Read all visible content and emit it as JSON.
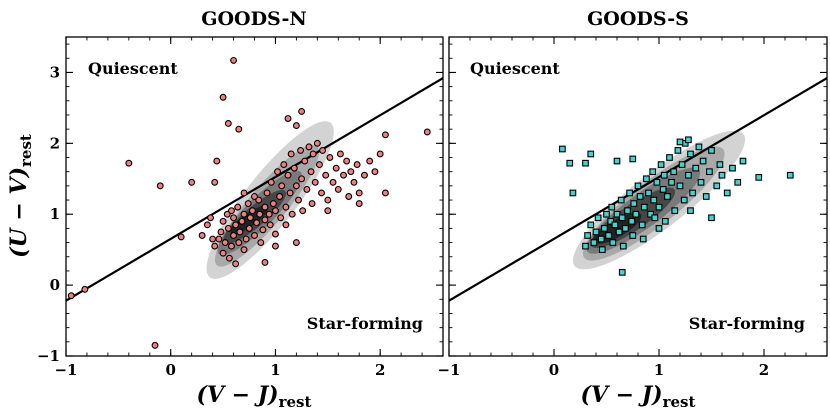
{
  "chart_data": [
    {
      "type": "scatter",
      "title": "GOODS-N",
      "xlabel": "(V − J)",
      "xlabel_sub": "rest",
      "ylabel": "(U − V)",
      "ylabel_sub": "rest",
      "xlim": [
        -1.0,
        2.6
      ],
      "ylim": [
        -1.0,
        3.5
      ],
      "xticks": [
        "−1",
        "0",
        "1",
        "2"
      ],
      "yticks": [
        "−1",
        "0",
        "1",
        "2",
        "3"
      ],
      "xtick_values": [
        -1,
        0,
        1,
        2
      ],
      "ytick_values": [
        -1,
        0,
        1,
        2,
        3
      ],
      "region_labels": {
        "quiescent": "Quiescent",
        "star_forming": "Star-forming"
      },
      "separation_line": {
        "x": [
          -1.0,
          2.6
        ],
        "y": [
          -0.22,
          2.92
        ]
      },
      "marker": {
        "shape": "circle",
        "fill": "#f08080",
        "edge": "#000000"
      },
      "density_contours": [
        {
          "level": 1,
          "color": "#d3d3d3",
          "center": [
            0.95,
            1.2
          ],
          "rx": 0.78,
          "ry": 0.3,
          "angle_deg": 52
        },
        {
          "level": 2,
          "color": "#a9a9a9",
          "center": [
            0.92,
            1.12
          ],
          "rx": 0.62,
          "ry": 0.22,
          "angle_deg": 50
        },
        {
          "level": 3,
          "color": "#7a7a7a",
          "center": [
            0.85,
            1.02
          ],
          "rx": 0.46,
          "ry": 0.17,
          "angle_deg": 45
        },
        {
          "level": 4,
          "color": "#474747",
          "center": [
            0.8,
            0.96
          ],
          "rx": 0.32,
          "ry": 0.12,
          "angle_deg": 40
        },
        {
          "level": 5,
          "color": "#222222",
          "center": [
            0.75,
            0.92
          ],
          "rx": 0.18,
          "ry": 0.08,
          "angle_deg": 35
        }
      ],
      "points": [
        [
          -0.95,
          -0.15
        ],
        [
          -0.82,
          -0.06
        ],
        [
          -0.4,
          1.72
        ],
        [
          -0.1,
          1.4
        ],
        [
          -0.15,
          -0.85
        ],
        [
          0.1,
          0.68
        ],
        [
          0.2,
          1.45
        ],
        [
          0.3,
          0.7
        ],
        [
          0.35,
          0.85
        ],
        [
          0.38,
          0.95
        ],
        [
          0.42,
          0.55
        ],
        [
          0.44,
          1.75
        ],
        [
          0.46,
          0.65
        ],
        [
          0.48,
          0.75
        ],
        [
          0.5,
          0.9
        ],
        [
          0.5,
          0.45
        ],
        [
          0.52,
          0.6
        ],
        [
          0.54,
          1.0
        ],
        [
          0.55,
          0.8
        ],
        [
          0.56,
          0.38
        ],
        [
          0.58,
          0.55
        ],
        [
          0.58,
          1.05
        ],
        [
          0.6,
          0.7
        ],
        [
          0.6,
          0.95
        ],
        [
          0.62,
          0.3
        ],
        [
          0.62,
          0.85
        ],
        [
          0.64,
          1.1
        ],
        [
          0.65,
          0.6
        ],
        [
          0.66,
          0.75
        ],
        [
          0.68,
          0.9
        ],
        [
          0.7,
          1.0
        ],
        [
          0.7,
          0.5
        ],
        [
          0.72,
          0.65
        ],
        [
          0.74,
          1.15
        ],
        [
          0.75,
          0.8
        ],
        [
          0.76,
          0.95
        ],
        [
          0.78,
          1.05
        ],
        [
          0.8,
          0.7
        ],
        [
          0.82,
          0.88
        ],
        [
          0.84,
          1.2
        ],
        [
          0.85,
          1.0
        ],
        [
          0.86,
          0.6
        ],
        [
          0.88,
          0.78
        ],
        [
          0.9,
          1.1
        ],
        [
          0.9,
          0.92
        ],
        [
          0.92,
          1.3
        ],
        [
          0.94,
          1.0
        ],
        [
          0.95,
          0.85
        ],
        [
          0.96,
          1.45
        ],
        [
          0.98,
          1.15
        ],
        [
          1.0,
          1.05
        ],
        [
          1.0,
          0.72
        ],
        [
          1.02,
          1.6
        ],
        [
          1.04,
          1.25
        ],
        [
          1.05,
          0.95
        ],
        [
          1.06,
          1.4
        ],
        [
          1.08,
          1.7
        ],
        [
          1.1,
          1.1
        ],
        [
          1.1,
          0.85
        ],
        [
          1.12,
          1.55
        ],
        [
          1.14,
          1.3
        ],
        [
          1.15,
          1.85
        ],
        [
          1.16,
          1.0
        ],
        [
          1.18,
          1.65
        ],
        [
          1.2,
          1.4
        ],
        [
          1.22,
          1.2
        ],
        [
          1.24,
          1.9
        ],
        [
          1.25,
          1.5
        ],
        [
          1.26,
          1.05
        ],
        [
          1.28,
          1.75
        ],
        [
          1.3,
          1.35
        ],
        [
          1.32,
          1.95
        ],
        [
          1.34,
          1.6
        ],
        [
          1.35,
          1.15
        ],
        [
          1.36,
          1.85
        ],
        [
          1.38,
          1.45
        ],
        [
          1.4,
          2.0
        ],
        [
          1.42,
          1.7
        ],
        [
          1.44,
          1.3
        ],
        [
          1.45,
          1.9
        ],
        [
          1.48,
          1.55
        ],
        [
          1.5,
          1.2
        ],
        [
          1.52,
          1.8
        ],
        [
          1.55,
          1.45
        ],
        [
          1.58,
          1.65
        ],
        [
          1.6,
          1.35
        ],
        [
          1.62,
          1.85
        ],
        [
          1.65,
          1.55
        ],
        [
          1.68,
          1.75
        ],
        [
          1.7,
          1.25
        ],
        [
          1.72,
          1.6
        ],
        [
          1.75,
          1.45
        ],
        [
          1.78,
          1.7
        ],
        [
          1.8,
          1.3
        ],
        [
          1.85,
          1.55
        ],
        [
          1.9,
          1.75
        ],
        [
          1.95,
          1.6
        ],
        [
          2.0,
          1.85
        ],
        [
          2.05,
          1.3
        ],
        [
          2.05,
          2.12
        ],
        [
          2.45,
          2.16
        ],
        [
          0.55,
          2.28
        ],
        [
          0.5,
          2.65
        ],
        [
          0.6,
          3.17
        ],
        [
          0.42,
          1.45
        ],
        [
          0.65,
          2.2
        ],
        [
          1.2,
          2.25
        ],
        [
          1.25,
          2.45
        ],
        [
          1.12,
          2.35
        ],
        [
          0.9,
          0.32
        ],
        [
          1.2,
          0.6
        ],
        [
          1.5,
          1.05
        ],
        [
          1.8,
          1.15
        ],
        [
          0.8,
          1.25
        ],
        [
          0.7,
          1.3
        ],
        [
          1.0,
          0.55
        ],
        [
          0.4,
          0.65
        ]
      ]
    },
    {
      "type": "scatter",
      "title": "GOODS-S",
      "xlabel": "(V − J)",
      "xlabel_sub": "rest",
      "ylabel": "",
      "xlim": [
        -1.0,
        2.6
      ],
      "ylim": [
        -1.0,
        3.5
      ],
      "xticks": [
        "−1",
        "0",
        "1",
        "2"
      ],
      "xtick_values": [
        -1,
        0,
        1,
        2
      ],
      "ytick_values": [
        -1,
        0,
        1,
        2,
        3
      ],
      "region_labels": {
        "quiescent": "Quiescent",
        "star_forming": "Star-forming"
      },
      "separation_line": {
        "x": [
          -1.0,
          2.6
        ],
        "y": [
          -0.22,
          2.92
        ]
      },
      "marker": {
        "shape": "square",
        "fill": "#48d1cc",
        "edge": "#000000"
      },
      "density_contours": [
        {
          "level": 1,
          "color": "#d3d3d3",
          "center": [
            1.0,
            1.2
          ],
          "rx": 0.85,
          "ry": 0.32,
          "angle_deg": 38
        },
        {
          "level": 2,
          "color": "#a9a9a9",
          "center": [
            0.95,
            1.15
          ],
          "rx": 0.7,
          "ry": 0.26,
          "angle_deg": 38
        },
        {
          "level": 3,
          "color": "#7a7a7a",
          "center": [
            0.85,
            1.05
          ],
          "rx": 0.55,
          "ry": 0.2,
          "angle_deg": 36
        },
        {
          "level": 4,
          "color": "#474747",
          "center": [
            0.75,
            0.95
          ],
          "rx": 0.4,
          "ry": 0.15,
          "angle_deg": 34
        },
        {
          "level": 5,
          "color": "#222222",
          "center": [
            0.6,
            0.8
          ],
          "rx": 0.22,
          "ry": 0.1,
          "angle_deg": 30
        }
      ],
      "points": [
        [
          0.08,
          1.92
        ],
        [
          0.15,
          1.72
        ],
        [
          0.18,
          1.3
        ],
        [
          0.3,
          1.72
        ],
        [
          0.35,
          1.85
        ],
        [
          0.6,
          1.75
        ],
        [
          0.75,
          1.78
        ],
        [
          0.65,
          0.18
        ],
        [
          0.3,
          0.55
        ],
        [
          0.32,
          0.7
        ],
        [
          0.35,
          0.85
        ],
        [
          0.38,
          0.6
        ],
        [
          0.4,
          0.75
        ],
        [
          0.42,
          0.95
        ],
        [
          0.45,
          0.65
        ],
        [
          0.46,
          0.5
        ],
        [
          0.48,
          0.8
        ],
        [
          0.5,
          1.0
        ],
        [
          0.52,
          0.7
        ],
        [
          0.54,
          0.9
        ],
        [
          0.55,
          1.1
        ],
        [
          0.56,
          0.6
        ],
        [
          0.58,
          0.85
        ],
        [
          0.6,
          1.0
        ],
        [
          0.62,
          0.75
        ],
        [
          0.64,
          1.2
        ],
        [
          0.65,
          0.95
        ],
        [
          0.66,
          0.55
        ],
        [
          0.68,
          0.8
        ],
        [
          0.7,
          1.05
        ],
        [
          0.72,
          1.3
        ],
        [
          0.74,
          0.9
        ],
        [
          0.75,
          0.7
        ],
        [
          0.76,
          1.15
        ],
        [
          0.78,
          1.0
        ],
        [
          0.8,
          1.4
        ],
        [
          0.82,
          1.25
        ],
        [
          0.84,
          0.85
        ],
        [
          0.86,
          1.1
        ],
        [
          0.88,
          1.5
        ],
        [
          0.9,
          1.3
        ],
        [
          0.92,
          1.0
        ],
        [
          0.94,
          1.6
        ],
        [
          0.95,
          1.2
        ],
        [
          0.96,
          0.95
        ],
        [
          0.98,
          1.45
        ],
        [
          1.0,
          1.1
        ],
        [
          1.02,
          1.7
        ],
        [
          1.04,
          1.35
        ],
        [
          1.05,
          1.55
        ],
        [
          1.06,
          0.9
        ],
        [
          1.08,
          1.25
        ],
        [
          1.1,
          1.8
        ],
        [
          1.12,
          1.45
        ],
        [
          1.14,
          1.6
        ],
        [
          1.15,
          1.05
        ],
        [
          1.18,
          1.9
        ],
        [
          1.2,
          1.4
        ],
        [
          1.22,
          1.7
        ],
        [
          1.24,
          1.2
        ],
        [
          1.25,
          2.0
        ],
        [
          1.28,
          1.55
        ],
        [
          1.3,
          1.85
        ],
        [
          1.32,
          1.3
        ],
        [
          1.35,
          1.65
        ],
        [
          1.38,
          1.95
        ],
        [
          1.4,
          1.45
        ],
        [
          1.42,
          1.75
        ],
        [
          1.45,
          1.25
        ],
        [
          1.48,
          1.6
        ],
        [
          1.5,
          1.9
        ],
        [
          1.55,
          1.4
        ],
        [
          1.58,
          1.7
        ],
        [
          1.6,
          1.55
        ],
        [
          1.65,
          1.3
        ],
        [
          1.7,
          1.65
        ],
        [
          1.75,
          1.45
        ],
        [
          1.8,
          1.75
        ],
        [
          1.95,
          1.52
        ],
        [
          2.25,
          1.55
        ],
        [
          1.5,
          0.95
        ],
        [
          1.3,
          1.05
        ],
        [
          1.2,
          2.02
        ],
        [
          1.28,
          2.05
        ],
        [
          0.85,
          0.65
        ],
        [
          1.0,
          0.8
        ]
      ]
    }
  ]
}
